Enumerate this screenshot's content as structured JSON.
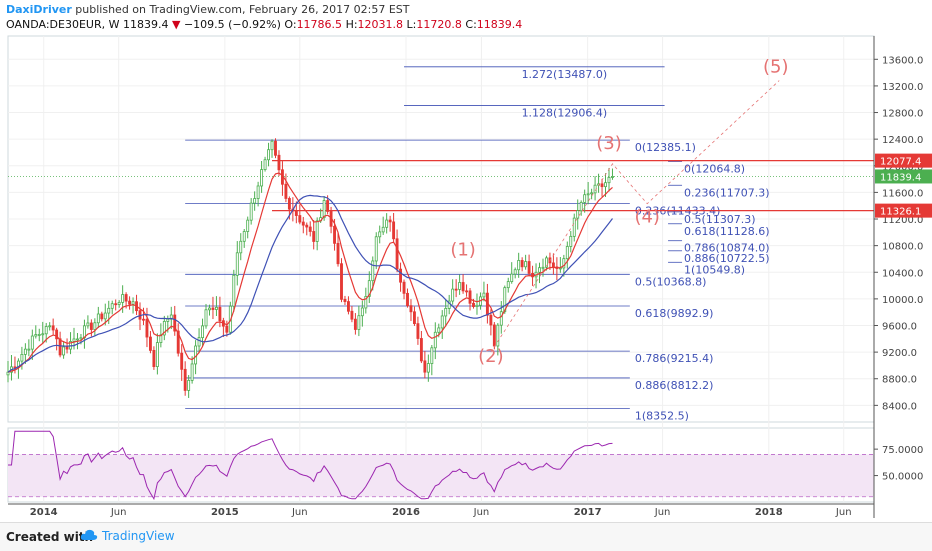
{
  "header": {
    "author": "DaxiDriver",
    "published": " published on TradingView.com, February 26, 2017 02:57 EST"
  },
  "ohlc": {
    "symbol": "OANDA:DE30EUR, W",
    "last": "11839.4",
    "arrow": "▼",
    "change": "−109.5 (−0.92%)",
    "o_label": "O:",
    "o": "11786.5",
    "h_label": "H:",
    "h": "12031.8",
    "l_label": "L:",
    "l": "11720.8",
    "c_label": "C:",
    "c": "11839.4"
  },
  "footer": {
    "created": "Created with",
    "brand": "TradingView"
  },
  "colors": {
    "up": "#4caf50",
    "down": "#e53935",
    "ema": "#e53935",
    "sma": "#3f51b5",
    "fib": "#3f51b5",
    "rsi_fill": "#f3e5f5",
    "rsi_line": "#9c27b0"
  },
  "chart_data": {
    "type": "candlestick",
    "y_ticks": [
      "13600.0",
      "13200.0",
      "12800.0",
      "12400.0",
      "12000.0",
      "11600.0",
      "11200.0",
      "10800.0",
      "10400.0",
      "10000.0",
      "9600.0",
      "9200.0",
      "8800.0",
      "8400.0"
    ],
    "y_tick_values": [
      13600,
      13200,
      12800,
      12400,
      12000,
      11600,
      11200,
      10800,
      10400,
      10000,
      9600,
      9200,
      8800,
      8400
    ],
    "ylim": [
      8150,
      13950
    ],
    "x_ticks": [
      "2014",
      "Jun",
      "2015",
      "Jun",
      "2016",
      "Jun",
      "2017",
      "Jun",
      "2018",
      "Jun"
    ],
    "x_tick_dates": [
      "2014-01-01",
      "2014-06-01",
      "2015-01-01",
      "2015-06-01",
      "2016-01-01",
      "2016-06-01",
      "2017-01-01",
      "2017-06-01",
      "2018-01-01",
      "2018-06-01"
    ],
    "xlim": [
      "2013-10-21",
      "2018-08-01"
    ],
    "price_labels": [
      {
        "label": "12077.4",
        "value": 12077.4,
        "color": "#e53935"
      },
      {
        "label": "11839.4",
        "value": 11839.4,
        "color": "#4caf50"
      },
      {
        "label": "11326.1",
        "value": 11326.1,
        "color": "#e53935"
      }
    ],
    "fib_retracement": [
      {
        "label": "0(12385.1)",
        "value": 12385.1
      },
      {
        "label": "0.236(11433.4)",
        "value": 11433.4
      },
      {
        "label": "0.5(10368.8)",
        "value": 10368.8
      },
      {
        "label": "0.618(9892.9)",
        "value": 9892.9
      },
      {
        "label": "0.786(9215.4)",
        "value": 9215.4
      },
      {
        "label": "0.886(8812.2)",
        "value": 8812.2
      },
      {
        "label": "1(8352.5)",
        "value": 8352.5
      }
    ],
    "fib_extension": [
      {
        "label": "1.272(13487.0)",
        "value": 13487.0
      },
      {
        "label": "1.128(12906.4)",
        "value": 12906.4
      }
    ],
    "fib_small": [
      {
        "label": "0(12064.8)",
        "value": 12064.8
      },
      {
        "label": "0.236(11707.3)",
        "value": 11707.3
      },
      {
        "label": "0.5(11307.3)",
        "value": 11307.3
      },
      {
        "label": "0.618(11128.6)",
        "value": 11128.6
      },
      {
        "label": "0.786(10874.0)",
        "value": 10874.0
      },
      {
        "label": "0.886(10722.5)",
        "value": 10722.5
      },
      {
        "label": "1(10549.8)",
        "value": 10549.8
      }
    ],
    "horizontal_lines": [
      {
        "value": 12077.4,
        "color": "#e53935"
      },
      {
        "value": 11326.1,
        "color": "#e53935"
      }
    ],
    "wave_labels": [
      {
        "label": "(1)",
        "date": "2016-04-25",
        "value": 10650
      },
      {
        "label": "(2)",
        "date": "2016-06-20",
        "value": 9050
      },
      {
        "label": "(3)",
        "date": "2017-02-13",
        "value": 12250
      },
      {
        "label": "(4)",
        "date": "2017-05-01",
        "value": 11150
      },
      {
        "label": "(5)",
        "date": "2018-01-15",
        "value": 13400
      }
    ],
    "wave_path": [
      {
        "date": "2016-06-20",
        "value": 9200
      },
      {
        "date": "2017-02-20",
        "value": 12030
      },
      {
        "date": "2017-05-01",
        "value": 11430
      },
      {
        "date": "2018-01-22",
        "value": 13280
      }
    ],
    "rsi": {
      "ticks": [
        "75.0000",
        "50.0000"
      ],
      "tick_values": [
        75,
        50
      ],
      "ylim": [
        25,
        95
      ],
      "bands": [
        70,
        30
      ]
    },
    "key_points": [
      {
        "date": "2013-10-21",
        "value": 8900
      },
      {
        "date": "2013-12-16",
        "value": 9450
      },
      {
        "date": "2014-01-20",
        "value": 9600
      },
      {
        "date": "2014-02-03",
        "value": 9200
      },
      {
        "date": "2014-03-10",
        "value": 9450
      },
      {
        "date": "2014-04-07",
        "value": 9600
      },
      {
        "date": "2014-06-02",
        "value": 10000
      },
      {
        "date": "2014-06-30",
        "value": 9950
      },
      {
        "date": "2014-07-21",
        "value": 9650
      },
      {
        "date": "2014-08-11",
        "value": 9050
      },
      {
        "date": "2014-08-25",
        "value": 9500
      },
      {
        "date": "2014-09-15",
        "value": 9800
      },
      {
        "date": "2014-10-13",
        "value": 8600
      },
      {
        "date": "2014-11-03",
        "value": 9300
      },
      {
        "date": "2014-11-24",
        "value": 9850
      },
      {
        "date": "2014-12-15",
        "value": 9800
      },
      {
        "date": "2015-01-05",
        "value": 9500
      },
      {
        "date": "2015-01-26",
        "value": 10700
      },
      {
        "date": "2015-02-23",
        "value": 11400
      },
      {
        "date": "2015-03-16",
        "value": 11900
      },
      {
        "date": "2015-04-06",
        "value": 12300
      },
      {
        "date": "2015-05-04",
        "value": 11500
      },
      {
        "date": "2015-06-01",
        "value": 11200
      },
      {
        "date": "2015-06-29",
        "value": 10900
      },
      {
        "date": "2015-07-20",
        "value": 11500
      },
      {
        "date": "2015-08-10",
        "value": 10900
      },
      {
        "date": "2015-08-24",
        "value": 10000
      },
      {
        "date": "2015-09-21",
        "value": 9600
      },
      {
        "date": "2015-10-05",
        "value": 9800
      },
      {
        "date": "2015-11-02",
        "value": 10900
      },
      {
        "date": "2015-11-30",
        "value": 11200
      },
      {
        "date": "2015-12-14",
        "value": 10500
      },
      {
        "date": "2016-01-11",
        "value": 9800
      },
      {
        "date": "2016-02-08",
        "value": 8900
      },
      {
        "date": "2016-02-29",
        "value": 9500
      },
      {
        "date": "2016-03-21",
        "value": 9900
      },
      {
        "date": "2016-04-18",
        "value": 10300
      },
      {
        "date": "2016-05-16",
        "value": 9900
      },
      {
        "date": "2016-06-06",
        "value": 10100
      },
      {
        "date": "2016-06-27",
        "value": 9300
      },
      {
        "date": "2016-07-18",
        "value": 10100
      },
      {
        "date": "2016-08-15",
        "value": 10600
      },
      {
        "date": "2016-09-12",
        "value": 10400
      },
      {
        "date": "2016-10-10",
        "value": 10600
      },
      {
        "date": "2016-11-07",
        "value": 10400
      },
      {
        "date": "2016-11-28",
        "value": 11000
      },
      {
        "date": "2016-12-19",
        "value": 11450
      },
      {
        "date": "2017-01-09",
        "value": 11600
      },
      {
        "date": "2017-01-30",
        "value": 11700
      },
      {
        "date": "2017-02-20",
        "value": 11839.4
      }
    ]
  }
}
